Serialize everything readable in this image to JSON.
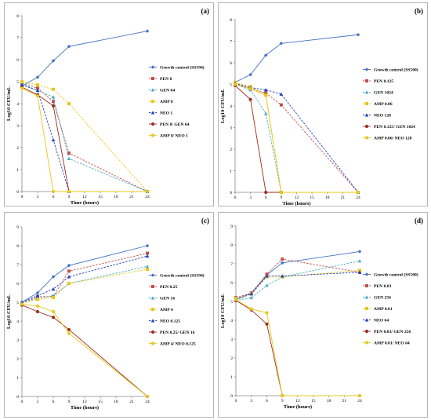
{
  "chart_data": [
    {
      "type": "line",
      "panel_label": "(a)",
      "xlabel": "Time (hours)",
      "ylabel": "Log10 CFU/mL",
      "x": [
        0,
        3,
        6,
        9,
        24
      ],
      "xticks": [
        0,
        3,
        6,
        9,
        12,
        15,
        18,
        21,
        24
      ],
      "ylim": [
        0,
        8
      ],
      "yticks": [
        0,
        1,
        2,
        3,
        4,
        5,
        6,
        7,
        8
      ],
      "legend_position": "right",
      "series": [
        {
          "name": "Growth control (SS394)",
          "color": "#4472C4",
          "marker": "diamond",
          "dash": false,
          "points": [
            [
              0,
              4.8
            ],
            [
              3,
              5.2
            ],
            [
              6,
              5.95
            ],
            [
              9,
              6.6
            ],
            [
              24,
              7.3
            ]
          ]
        },
        {
          "name": "PEN 8",
          "color": "#C0504D",
          "marker": "square",
          "dash": true,
          "points": [
            [
              0,
              4.95
            ],
            [
              3,
              4.7
            ],
            [
              6,
              4.1
            ],
            [
              9,
              1.75
            ],
            [
              24,
              0
            ]
          ]
        },
        {
          "name": "GEN 64",
          "color": "#4BACC6",
          "marker": "triangle",
          "dash": true,
          "points": [
            [
              0,
              4.9
            ],
            [
              3,
              4.6
            ],
            [
              6,
              4.3
            ],
            [
              9,
              1.5
            ],
            [
              24,
              0
            ]
          ]
        },
        {
          "name": "AMP 8",
          "color": "#E6C818",
          "marker": "square",
          "dash": true,
          "points": [
            [
              0,
              5.0
            ],
            [
              3,
              4.85
            ],
            [
              6,
              4.65
            ],
            [
              9,
              4.0
            ],
            [
              24,
              0
            ]
          ]
        },
        {
          "name": "NEO 1",
          "color": "#1F3FBF",
          "marker": "triangle",
          "dash": true,
          "points": [
            [
              0,
              4.85
            ],
            [
              3,
              4.6
            ],
            [
              6,
              2.35
            ],
            [
              9,
              0
            ],
            [
              24,
              0
            ]
          ]
        },
        {
          "name": "PEN 8/ GEN 64",
          "color": "#9B2D1F",
          "marker": "circle",
          "dash": false,
          "points": [
            [
              0,
              4.75
            ],
            [
              3,
              4.4
            ],
            [
              6,
              3.9
            ],
            [
              9,
              0
            ],
            [
              24,
              0
            ]
          ]
        },
        {
          "name": "AMP 8/ NEO 1",
          "color": "#E6C818",
          "marker": "circle",
          "dash": false,
          "points": [
            [
              0,
              4.7
            ],
            [
              3,
              4.35
            ],
            [
              6,
              0
            ],
            [
              9,
              0
            ],
            [
              24,
              0
            ]
          ]
        }
      ]
    },
    {
      "type": "line",
      "panel_label": "(b)",
      "xlabel": "Time (hours)",
      "ylabel": "Log10 CFU/mL",
      "x": [
        0,
        3,
        6,
        9,
        24
      ],
      "xticks": [
        0,
        3,
        6,
        9,
        12,
        15,
        18,
        21,
        24
      ],
      "ylim": [
        0,
        8
      ],
      "yticks": [
        0,
        1,
        2,
        3,
        4,
        5,
        6,
        7,
        8
      ],
      "legend_position": "right",
      "series": [
        {
          "name": "Growth control (SS500)",
          "color": "#4472C4",
          "marker": "diamond",
          "dash": false,
          "points": [
            [
              0,
              5.1
            ],
            [
              3,
              5.45
            ],
            [
              6,
              6.35
            ],
            [
              9,
              6.9
            ],
            [
              24,
              7.3
            ]
          ]
        },
        {
          "name": "PEN 0.125",
          "color": "#C0504D",
          "marker": "square",
          "dash": true,
          "points": [
            [
              0,
              5.05
            ],
            [
              3,
              4.8
            ],
            [
              6,
              4.6
            ],
            [
              9,
              4.05
            ],
            [
              24,
              0
            ]
          ]
        },
        {
          "name": "GEN 1024",
          "color": "#4BACC6",
          "marker": "triangle",
          "dash": true,
          "points": [
            [
              0,
              5.0
            ],
            [
              3,
              4.75
            ],
            [
              6,
              3.65
            ],
            [
              9,
              0
            ],
            [
              24,
              0
            ]
          ]
        },
        {
          "name": "AMP 0.06",
          "color": "#E6C818",
          "marker": "square",
          "dash": true,
          "points": [
            [
              0,
              5.1
            ],
            [
              3,
              4.9
            ],
            [
              6,
              4.5
            ],
            [
              9,
              0
            ],
            [
              24,
              0
            ]
          ]
        },
        {
          "name": "NEO 128",
          "color": "#1F3FBF",
          "marker": "triangle",
          "dash": true,
          "points": [
            [
              0,
              5.05
            ],
            [
              3,
              4.85
            ],
            [
              6,
              4.75
            ],
            [
              9,
              4.55
            ],
            [
              24,
              0
            ]
          ]
        },
        {
          "name": "PEN 0.125/ GEN 1024",
          "color": "#9B2D1F",
          "marker": "circle",
          "dash": false,
          "points": [
            [
              0,
              4.95
            ],
            [
              3,
              4.3
            ],
            [
              6,
              0
            ],
            [
              9,
              0
            ],
            [
              24,
              0
            ]
          ]
        },
        {
          "name": "AMP 0.06/ NEO 128",
          "color": "#E6C818",
          "marker": "circle",
          "dash": false,
          "points": [
            [
              0,
              5.0
            ],
            [
              3,
              4.8
            ],
            [
              6,
              4.5
            ],
            [
              9,
              0
            ],
            [
              24,
              0
            ]
          ]
        }
      ]
    },
    {
      "type": "line",
      "panel_label": "(c)",
      "xlabel": "Time (hours)",
      "ylabel": "Log10 CFU/mL",
      "x": [
        0,
        3,
        6,
        9,
        24
      ],
      "xticks": [
        0,
        3,
        6,
        9,
        12,
        15,
        18,
        21,
        24
      ],
      "ylim": [
        0,
        9
      ],
      "yticks": [
        0,
        1,
        2,
        3,
        4,
        5,
        6,
        7,
        8,
        9
      ],
      "legend_position": "right",
      "series": [
        {
          "name": "Growth control (SS394)",
          "color": "#4472C4",
          "marker": "diamond",
          "dash": false,
          "points": [
            [
              0,
              5.0
            ],
            [
              3,
              5.5
            ],
            [
              6,
              6.35
            ],
            [
              9,
              6.95
            ],
            [
              24,
              8.0
            ]
          ]
        },
        {
          "name": "PEN 0.25",
          "color": "#C0504D",
          "marker": "square",
          "dash": true,
          "points": [
            [
              0,
              4.95
            ],
            [
              3,
              5.3
            ],
            [
              6,
              5.3
            ],
            [
              9,
              6.65
            ],
            [
              24,
              7.6
            ]
          ]
        },
        {
          "name": "GEN 16",
          "color": "#4BACC6",
          "marker": "triangle",
          "dash": true,
          "points": [
            [
              0,
              5.0
            ],
            [
              3,
              5.2
            ],
            [
              6,
              5.35
            ],
            [
              9,
              6.0
            ],
            [
              24,
              6.9
            ]
          ]
        },
        {
          "name": "AMP 4",
          "color": "#E6C818",
          "marker": "square",
          "dash": true,
          "points": [
            [
              0,
              4.95
            ],
            [
              3,
              5.15
            ],
            [
              6,
              5.25
            ],
            [
              9,
              6.0
            ],
            [
              24,
              6.75
            ]
          ]
        },
        {
          "name": "NEO 0.125",
          "color": "#1F3FBF",
          "marker": "triangle",
          "dash": true,
          "points": [
            [
              0,
              5.0
            ],
            [
              3,
              5.35
            ],
            [
              6,
              5.7
            ],
            [
              9,
              6.35
            ],
            [
              24,
              7.45
            ]
          ]
        },
        {
          "name": "PEN 0.25/ GEN 16",
          "color": "#9B2D1F",
          "marker": "circle",
          "dash": false,
          "points": [
            [
              0,
              4.85
            ],
            [
              3,
              4.5
            ],
            [
              6,
              4.2
            ],
            [
              9,
              3.55
            ],
            [
              24,
              0
            ]
          ]
        },
        {
          "name": "AMP 4/ NEO 0.125",
          "color": "#E6C818",
          "marker": "circle",
          "dash": false,
          "points": [
            [
              0,
              4.9
            ],
            [
              3,
              4.8
            ],
            [
              6,
              4.5
            ],
            [
              9,
              3.35
            ],
            [
              24,
              0
            ]
          ]
        }
      ]
    },
    {
      "type": "line",
      "panel_label": "(d)",
      "xlabel": "Time (hours)",
      "ylabel": "Log10 CFU/mL",
      "x": [
        0,
        3,
        6,
        9,
        24
      ],
      "xticks": [
        0,
        3,
        6,
        9,
        12,
        15,
        18,
        21,
        24
      ],
      "ylim": [
        0,
        9
      ],
      "yticks": [
        0,
        1,
        2,
        3,
        4,
        5,
        6,
        7,
        8,
        9
      ],
      "legend_position": "right",
      "series": [
        {
          "name": "Growth control (SS500)",
          "color": "#4472C4",
          "marker": "diamond",
          "dash": false,
          "points": [
            [
              0,
              5.1
            ],
            [
              3,
              5.45
            ],
            [
              6,
              6.4
            ],
            [
              9,
              7.05
            ],
            [
              24,
              7.65
            ]
          ]
        },
        {
          "name": "PEN 0.03",
          "color": "#C0504D",
          "marker": "square",
          "dash": true,
          "points": [
            [
              0,
              5.2
            ],
            [
              3,
              5.45
            ],
            [
              6,
              6.45
            ],
            [
              9,
              7.25
            ],
            [
              24,
              6.55
            ]
          ]
        },
        {
          "name": "GEN 256",
          "color": "#4BACC6",
          "marker": "triangle",
          "dash": true,
          "points": [
            [
              0,
              5.05
            ],
            [
              3,
              5.2
            ],
            [
              6,
              5.85
            ],
            [
              9,
              6.3
            ],
            [
              24,
              7.15
            ]
          ]
        },
        {
          "name": "AMP 0.01",
          "color": "#E6C818",
          "marker": "square",
          "dash": true,
          "points": [
            [
              0,
              5.15
            ],
            [
              3,
              5.4
            ],
            [
              6,
              6.3
            ],
            [
              9,
              6.3
            ],
            [
              24,
              6.65
            ]
          ]
        },
        {
          "name": "NEO 64",
          "color": "#1F3FBF",
          "marker": "triangle",
          "dash": true,
          "points": [
            [
              0,
              5.1
            ],
            [
              3,
              5.4
            ],
            [
              6,
              6.35
            ],
            [
              9,
              6.35
            ],
            [
              24,
              6.55
            ]
          ]
        },
        {
          "name": "PEN 0.03/ GEN 256",
          "color": "#9B2D1F",
          "marker": "circle",
          "dash": false,
          "points": [
            [
              0,
              5.05
            ],
            [
              3,
              4.55
            ],
            [
              6,
              3.8
            ],
            [
              9,
              0
            ],
            [
              24,
              0
            ]
          ]
        },
        {
          "name": "AMP 0.01/ NEO 64",
          "color": "#E6C818",
          "marker": "circle",
          "dash": false,
          "points": [
            [
              0,
              5.1
            ],
            [
              3,
              4.6
            ],
            [
              6,
              4.4
            ],
            [
              9,
              0
            ],
            [
              24,
              0
            ]
          ]
        }
      ]
    }
  ]
}
